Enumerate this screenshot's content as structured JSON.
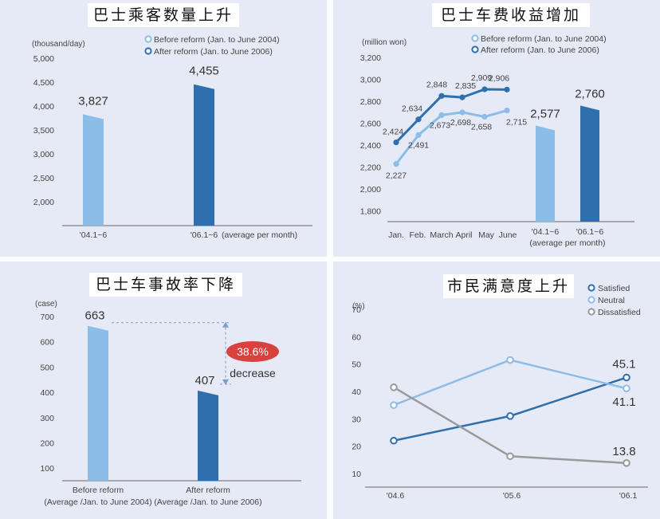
{
  "colors": {
    "light": "#8cbce8",
    "dark": "#2f6fae",
    "gray": "#9a9a9a",
    "panel_bg": "#e6eaf6",
    "red_badge": "#d9413f"
  },
  "chart_data": [
    {
      "id": "passengers",
      "type": "bar",
      "title": "巴士乘客数量上升",
      "unit": "(thousand/day)",
      "legend": [
        "Before reform (Jan. to June 2004)",
        "After reform (Jan. to June 2006)"
      ],
      "ylim": [
        1500,
        5000
      ],
      "yticks": [
        "5,000",
        "4,500",
        "4,000",
        "3,500",
        "3,000",
        "2,500",
        "2,000"
      ],
      "ytick_values": [
        5000,
        4500,
        4000,
        3500,
        3000,
        2500,
        2000
      ],
      "categories": [
        "'04.1~6",
        "'06.1~6"
      ],
      "values": [
        3827,
        4455
      ],
      "value_labels": [
        "3,827",
        "4,455"
      ],
      "x_note": "(average per month)"
    },
    {
      "id": "revenue",
      "type": "line",
      "title": "巴士车费收益增加",
      "unit": "(million won)",
      "legend": [
        "Before reform (Jan. to June 2004)",
        "After reform (Jan. to June 2006)"
      ],
      "ylim": [
        1700,
        3200
      ],
      "yticks": [
        "3,200",
        "3,000",
        "2,800",
        "2,600",
        "2,400",
        "2,200",
        "2,000",
        "1,800"
      ],
      "ytick_values": [
        3200,
        3000,
        2800,
        2600,
        2400,
        2200,
        2000,
        1800
      ],
      "categories": [
        "Jan.",
        "Feb.",
        "March",
        "April",
        "May",
        "June"
      ],
      "series": [
        {
          "name": "Before reform (Jan. to June 2004)",
          "values": [
            2227,
            2491,
            2673,
            2698,
            2658,
            2715
          ],
          "labels": [
            "2,227",
            "2,491",
            "2,673",
            "2,698",
            "2,658",
            "2,715"
          ]
        },
        {
          "name": "After reform (Jan. to June 2006)",
          "values": [
            2424,
            2634,
            2848,
            2835,
            2909,
            2906
          ],
          "labels": [
            "2,424",
            "2,634",
            "2,848",
            "2,835",
            "2,909",
            "2,906"
          ]
        }
      ],
      "bars": {
        "categories": [
          "'04.1~6",
          "'06.1~6"
        ],
        "values": [
          2577,
          2760
        ],
        "value_labels": [
          "2,577",
          "2,760"
        ],
        "note": "(average per month)"
      }
    },
    {
      "id": "accidents",
      "type": "bar",
      "title": "巴士车事故率下降",
      "unit": "(case)",
      "ylim": [
        50,
        700
      ],
      "yticks": [
        "700",
        "600",
        "500",
        "400",
        "300",
        "200",
        "100"
      ],
      "ytick_values": [
        700,
        600,
        500,
        400,
        300,
        200,
        100
      ],
      "categories": [
        "Before reform",
        "After reform"
      ],
      "sublabels": [
        "(Average /Jan. to June 2004)",
        "(Average /Jan. to June 2006)"
      ],
      "values": [
        663,
        407
      ],
      "value_labels": [
        "663",
        "407"
      ],
      "badge": "38.6%",
      "badge_text": "decrease"
    },
    {
      "id": "satisfaction",
      "type": "line",
      "title": "市民满意度上升",
      "unit": "(%)",
      "ylim": [
        5,
        75
      ],
      "yticks": [
        "70",
        "60",
        "50",
        "40",
        "30",
        "20",
        "10"
      ],
      "ytick_values": [
        70,
        60,
        50,
        40,
        30,
        20,
        10
      ],
      "categories": [
        "'04.6",
        "'05.6",
        "'06.1"
      ],
      "series": [
        {
          "name": "Satisfied",
          "values": [
            22,
            31,
            45.1
          ]
        },
        {
          "name": "Neutral",
          "values": [
            35,
            51.5,
            41.1
          ]
        },
        {
          "name": "Dissatisfied",
          "values": [
            41.5,
            16.3,
            13.8
          ]
        }
      ],
      "end_labels": [
        "45.1",
        "41.1",
        "13.8"
      ]
    }
  ]
}
